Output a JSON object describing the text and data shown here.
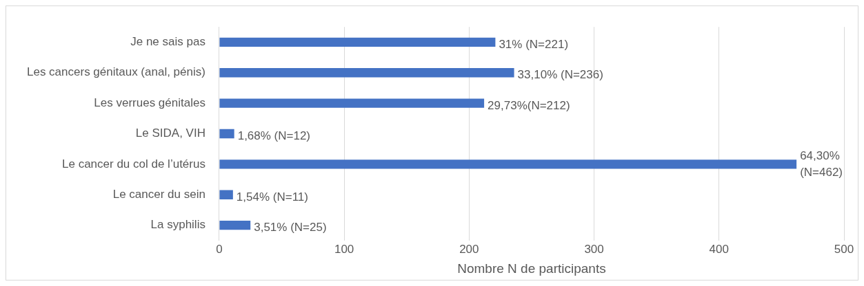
{
  "chart_data": {
    "type": "bar",
    "orientation": "horizontal",
    "categories": [
      "Je ne sais pas",
      "Les cancers génitaux (anal, pénis)",
      "Les verrues génitales",
      "Le SIDA, VIH",
      "Le cancer du col de l’utérus",
      "Le cancer du sein",
      "La syphilis"
    ],
    "values": [
      221,
      236,
      212,
      12,
      462,
      11,
      25
    ],
    "value_labels": [
      "31% (N=221)",
      "33,10% (N=236)",
      "29,73%(N=212)",
      "1,68% (N=12)",
      "64,30% (N=462)",
      "1,54% (N=11)",
      "3,51% (N=25)"
    ],
    "color": "#4472c4",
    "xlabel": "Nombre N de participants",
    "xlim": [
      0,
      500
    ],
    "xticks": [
      0,
      100,
      200,
      300,
      400,
      500
    ],
    "grid": "x",
    "legend": false
  }
}
